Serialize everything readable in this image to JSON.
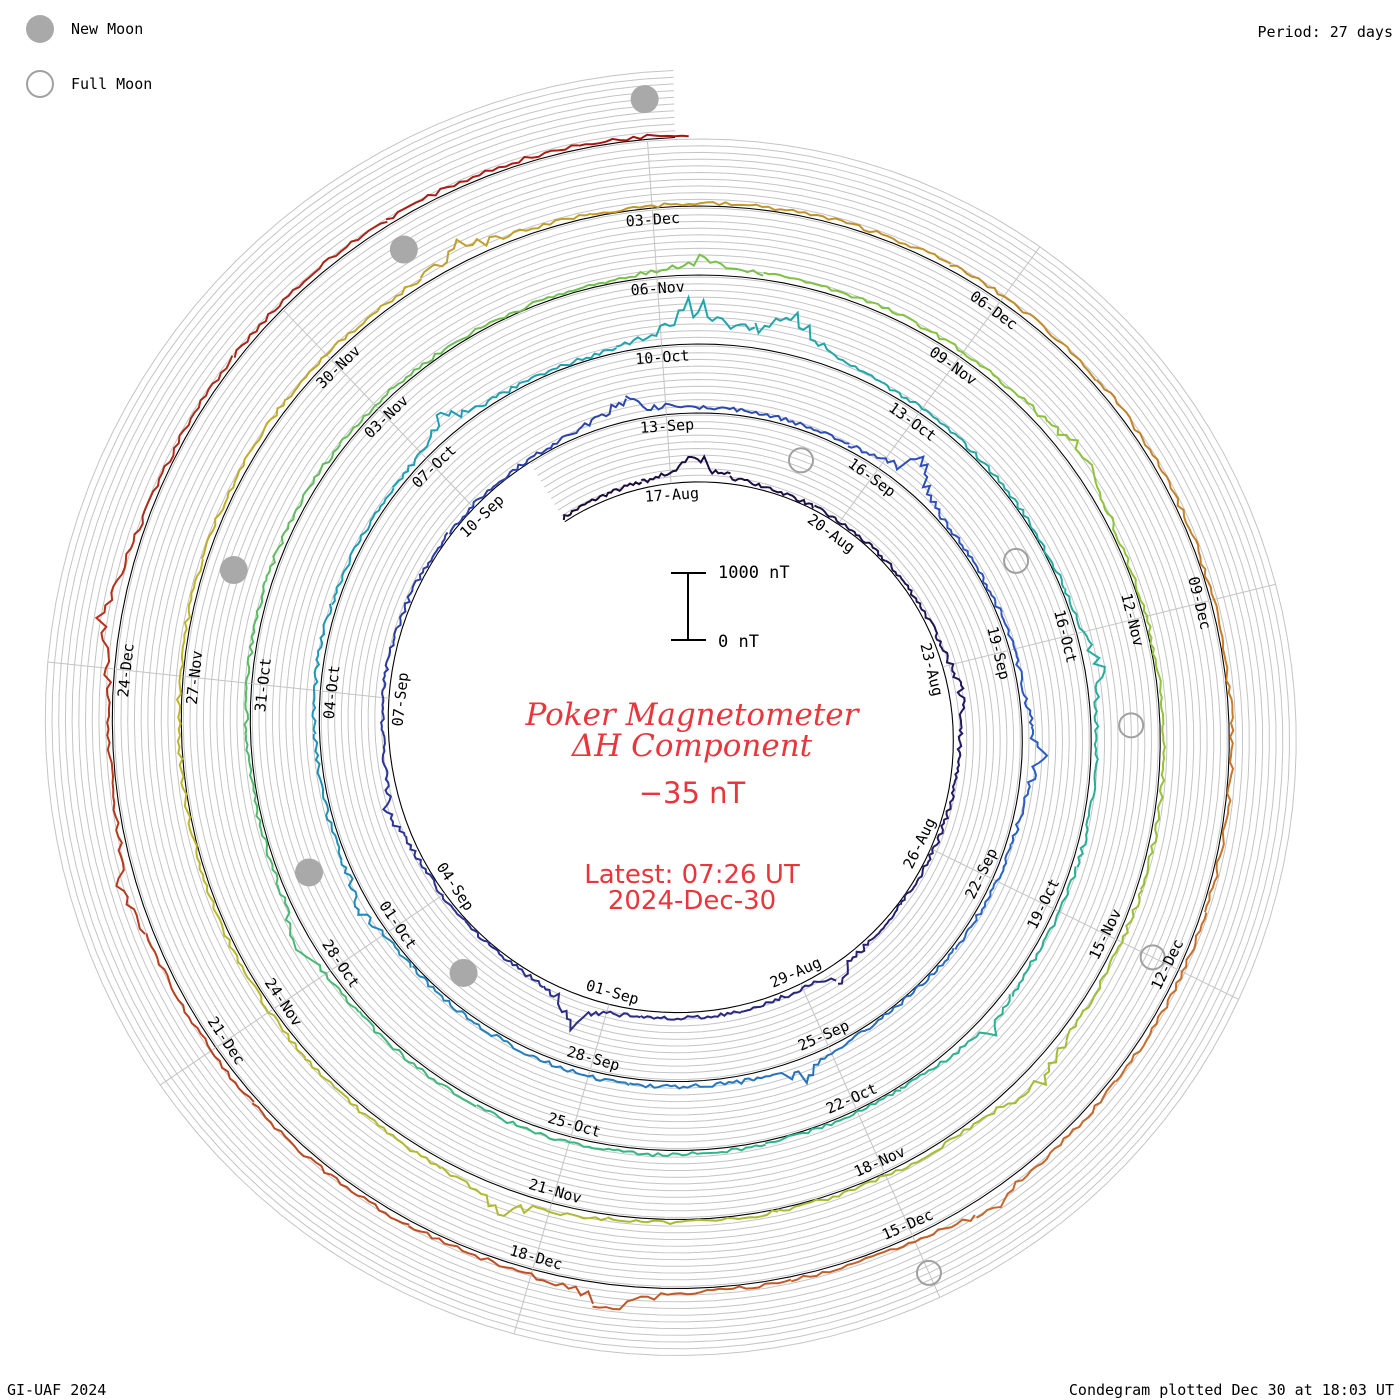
{
  "legend": {
    "new_moon_label": "New Moon",
    "full_moon_label": "Full Moon",
    "new_moon_color": "#a9a9a9",
    "full_moon_color": "#a0a0a0"
  },
  "period_label": "Period: 27 days",
  "footer": {
    "credit": "GI-UAF 2024",
    "plotted": "Condegram plotted Dec 30 at 18:03 UT"
  },
  "center": {
    "title_line1": "Poker Magnetometer",
    "title_line2": "ΔH Component",
    "current_value": "−35 nT",
    "latest_time": "Latest: 07:26 UT",
    "latest_date": "2024-Dec-30",
    "text_color": "#e8363c"
  },
  "scale_bar": {
    "top_label": "1000 nT",
    "bottom_label": "0 nT"
  },
  "chart_data": {
    "type": "condegram",
    "description_units": "ΔH in nT plotted radially along a spiral, one revolution per 27-day solar rotation",
    "period_days": 27,
    "start_date": "2024-08-15",
    "end_date": "2024-12-30",
    "scale_nT": [
      0,
      1000
    ],
    "spiral_date_labels": [
      "17-Aug",
      "20-Aug",
      "23-Aug",
      "26-Aug",
      "29-Aug",
      "01-Sep",
      "04-Sep",
      "07-Sep",
      "10-Sep",
      "13-Sep",
      "16-Sep",
      "19-Sep",
      "22-Sep",
      "25-Sep",
      "28-Sep",
      "01-Oct",
      "04-Oct",
      "07-Oct",
      "10-Oct",
      "13-Oct",
      "16-Oct",
      "19-Oct",
      "22-Oct",
      "25-Oct",
      "28-Oct",
      "31-Oct",
      "03-Nov",
      "06-Nov",
      "09-Nov",
      "12-Nov",
      "15-Nov",
      "18-Nov",
      "21-Nov",
      "24-Nov",
      "27-Nov",
      "30-Nov",
      "03-Dec",
      "06-Dec",
      "09-Dec",
      "12-Dec",
      "15-Dec",
      "18-Dec",
      "21-Dec",
      "24-Dec"
    ],
    "new_moons": [
      "2024-09-03",
      "2024-10-02",
      "2024-11-01",
      "2024-12-01",
      "2024-12-30"
    ],
    "full_moons": [
      "2024-08-19",
      "2024-09-18",
      "2024-10-17",
      "2024-11-15",
      "2024-12-15"
    ],
    "activity_events": [
      {
        "date": "2024-08-17",
        "peak_nT": 520
      },
      {
        "date": "2024-08-23",
        "peak_nT": 260
      },
      {
        "date": "2024-08-28",
        "peak_nT": 300
      },
      {
        "date": "2024-09-01",
        "peak_nT": 560
      },
      {
        "date": "2024-09-05",
        "peak_nT": 240
      },
      {
        "date": "2024-09-12",
        "peak_nT": 480
      },
      {
        "date": "2024-09-16",
        "peak_nT": 620
      },
      {
        "date": "2024-09-20",
        "peak_nT": 350
      },
      {
        "date": "2024-09-25",
        "peak_nT": 320
      },
      {
        "date": "2024-10-01",
        "peak_nT": 260
      },
      {
        "date": "2024-10-07",
        "peak_nT": 380
      },
      {
        "date": "2024-10-10",
        "peak_nT": 900
      },
      {
        "date": "2024-10-11",
        "peak_nT": 820
      },
      {
        "date": "2024-10-16",
        "peak_nT": 300
      },
      {
        "date": "2024-10-20",
        "peak_nT": 260
      },
      {
        "date": "2024-10-28",
        "peak_nT": 280
      },
      {
        "date": "2024-11-06",
        "peak_nT": 320
      },
      {
        "date": "2024-11-10",
        "peak_nT": 420
      },
      {
        "date": "2024-11-16",
        "peak_nT": 360
      },
      {
        "date": "2024-11-21",
        "peak_nT": 400
      },
      {
        "date": "2024-12-01",
        "peak_nT": 280
      },
      {
        "date": "2024-12-14",
        "peak_nT": 260
      },
      {
        "date": "2024-12-17",
        "peak_nT": 520
      },
      {
        "date": "2024-12-22",
        "peak_nT": 300
      },
      {
        "date": "2024-12-24",
        "peak_nT": 400
      }
    ],
    "latest_value_nT": -35,
    "color_scale": [
      "#1a0a3a",
      "#2b2d8c",
      "#2b56c6",
      "#1c9fb8",
      "#2eb68a",
      "#8ac43a",
      "#c0b628",
      "#c8662a",
      "#a81010"
    ]
  }
}
